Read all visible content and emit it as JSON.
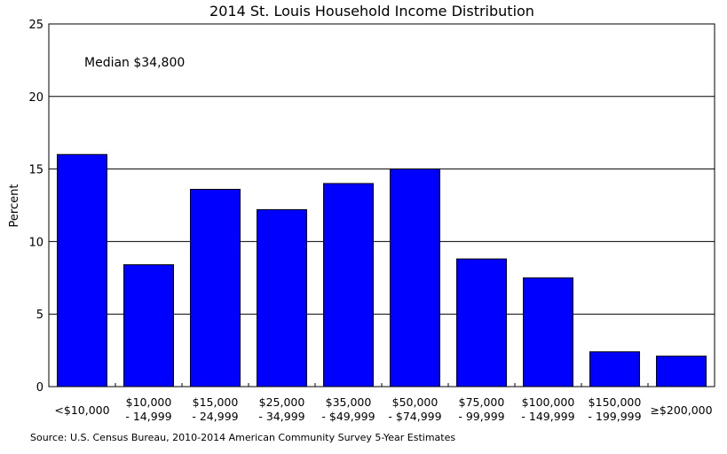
{
  "chart_data": {
    "type": "bar",
    "title": "2014 St. Louis Household Income Distribution",
    "ylabel": "Percent",
    "xlabel": "",
    "ylim": [
      0,
      25
    ],
    "yticks": [
      0,
      5,
      10,
      15,
      20,
      25
    ],
    "grid": true,
    "annotation": "Median $34,800",
    "bar_color": "#0000ff",
    "categories": [
      [
        "<$10,000"
      ],
      [
        "$10,000",
        "- 14,999"
      ],
      [
        "$15,000",
        "- 24,999"
      ],
      [
        "$25,000",
        "- 34,999"
      ],
      [
        "$35,000",
        "- $49,999"
      ],
      [
        "$50,000",
        "- $74,999"
      ],
      [
        "$75,000",
        "- 99,999"
      ],
      [
        "$100,000",
        "- 149,999"
      ],
      [
        "$150,000",
        "- 199,999"
      ],
      [
        "≥$200,000"
      ]
    ],
    "values": [
      16.0,
      8.4,
      13.6,
      12.2,
      14.0,
      15.0,
      8.8,
      7.5,
      2.4,
      2.1
    ]
  },
  "source": "Source: U.S. Census Bureau, 2010-2014 American Community Survey 5-Year Estimates"
}
